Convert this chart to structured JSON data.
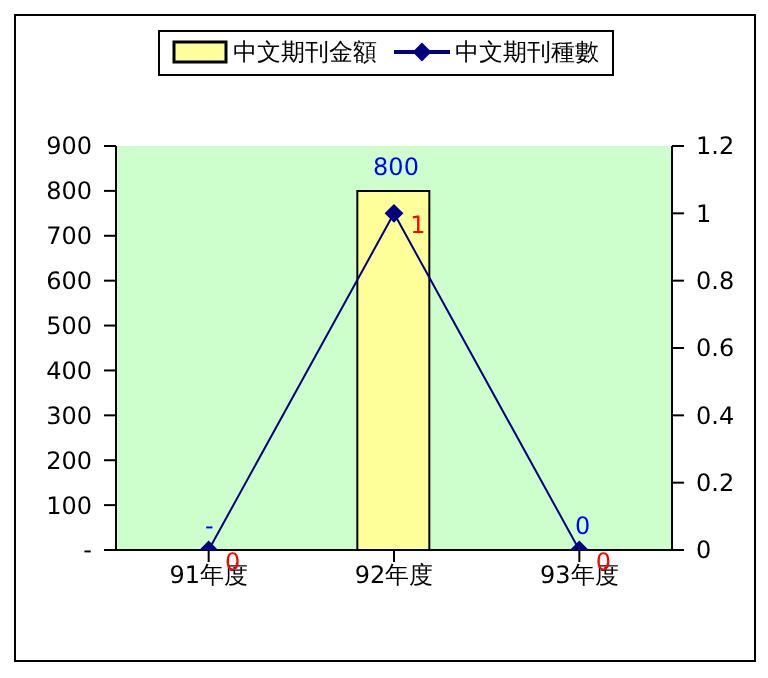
{
  "chart_data": {
    "type": "bar",
    "categories": [
      "91年度",
      "92年度",
      "93年度"
    ],
    "series": [
      {
        "name": "中文期刊金額",
        "color": "#ffff99",
        "values": [
          0,
          800,
          0
        ],
        "value_labels": [
          "-",
          "800",
          "0"
        ]
      },
      {
        "name": "中文期刊種數",
        "type": "line",
        "axis": "y2",
        "color": "#000080",
        "values": [
          0,
          1,
          0
        ],
        "value_labels": [
          "0",
          "1",
          "0"
        ]
      }
    ],
    "ylim": [
      0,
      900
    ],
    "yticks": [
      {
        "value": 0,
        "label": "-"
      },
      100,
      200,
      300,
      400,
      500,
      600,
      700,
      800,
      900
    ],
    "y2lim": [
      0,
      1.2
    ],
    "y2ticks": [
      0,
      0.2,
      0.4,
      0.6,
      0.8,
      1,
      1.2
    ],
    "legend": "top",
    "marker": "diamond",
    "grid": false
  }
}
